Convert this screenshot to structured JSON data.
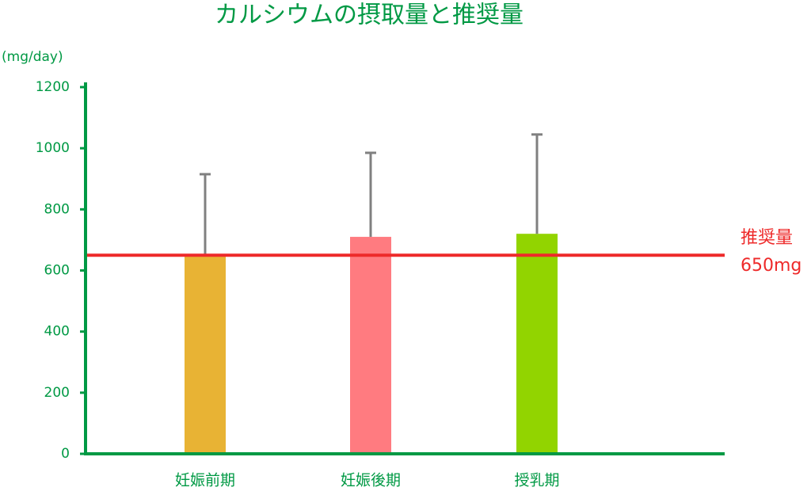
{
  "chart_data": {
    "type": "bar",
    "title": "カルシウムの摂取量と推奨量",
    "y_label": "(mg/day)",
    "categories": [
      "妊娠前期",
      "妊娠後期",
      "授乳期"
    ],
    "values": [
      650,
      710,
      720
    ],
    "errors": [
      265,
      275,
      325
    ],
    "colors": [
      "#e8b334",
      "#ff7b80",
      "#92d400"
    ],
    "error_color": "#808080",
    "axis_color": "#009944",
    "ylim": [
      0,
      1200
    ],
    "yticks": [
      0,
      200,
      400,
      600,
      800,
      1000,
      1200
    ],
    "reference_line": {
      "name": "推奨量",
      "value": 650,
      "label": "650mg",
      "color": "#ee2a2a"
    }
  }
}
